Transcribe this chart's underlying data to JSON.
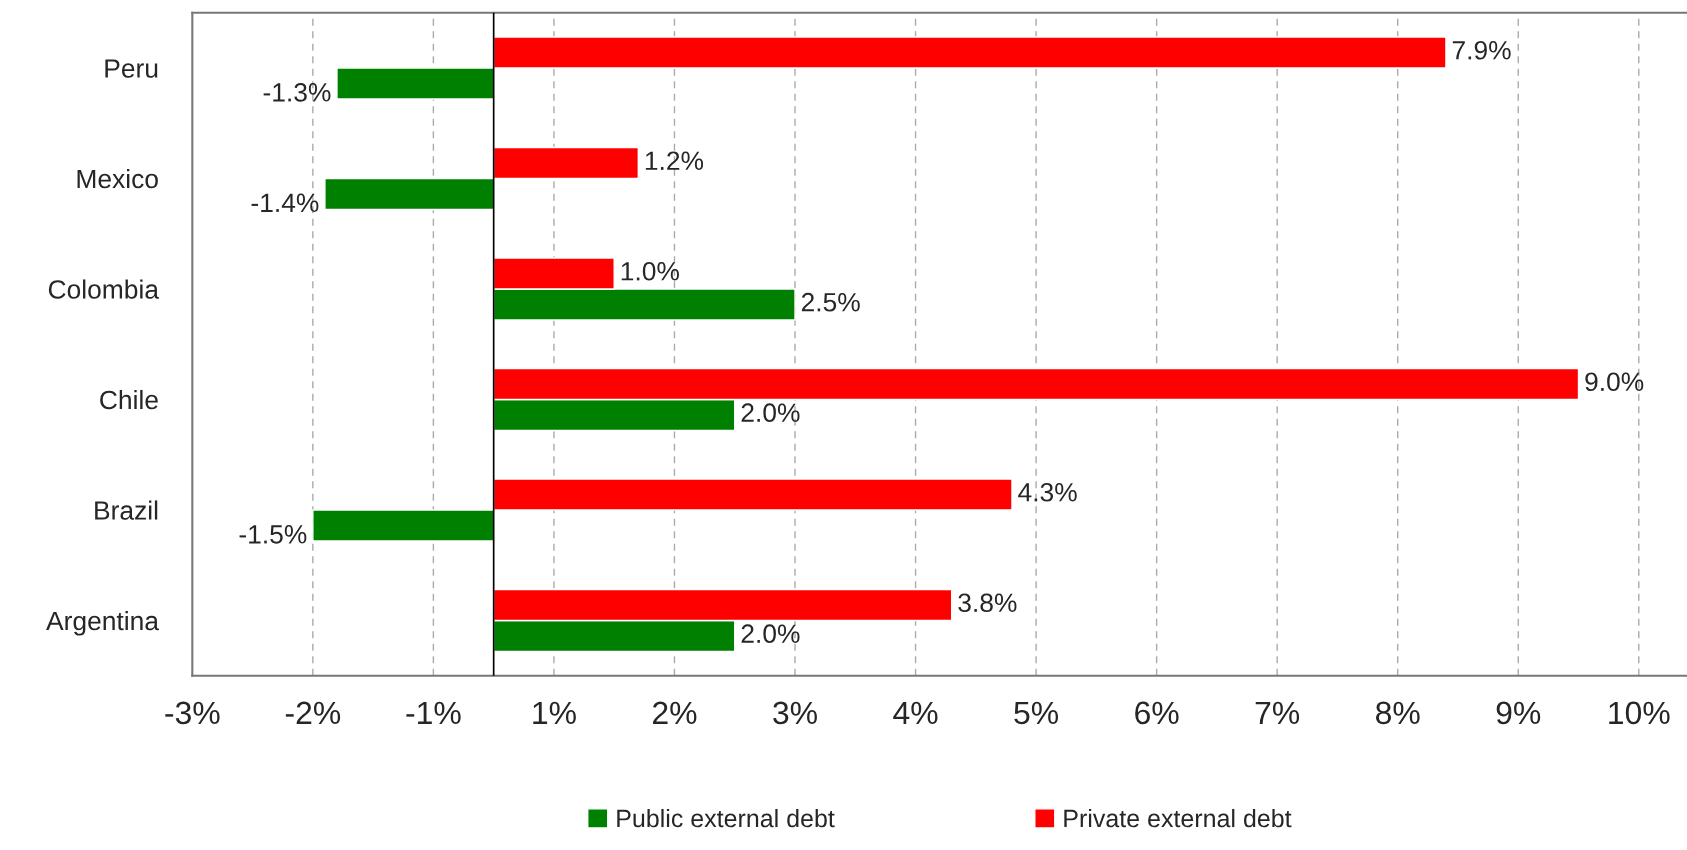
{
  "chart_data": {
    "type": "bar",
    "orientation": "horizontal",
    "categories": [
      "Peru",
      "Mexico",
      "Colombia",
      "Chile",
      "Brazil",
      "Argentina"
    ],
    "series": [
      {
        "name": "Public external debt",
        "color": "#008000",
        "values": [
          -1.3,
          -1.4,
          2.5,
          2.0,
          -1.5,
          2.0
        ],
        "value_labels": [
          "-1.3%",
          "-1.4%",
          "2.5%",
          "2.0%",
          "-1.5%",
          "2.0%"
        ]
      },
      {
        "name": "Private external debt",
        "color": "#ff0000",
        "values": [
          7.9,
          1.2,
          1.0,
          9.0,
          4.3,
          3.8
        ],
        "value_labels": [
          "7.9%",
          "1.2%",
          "1.0%",
          "9.0%",
          "4.3%",
          "3.8%"
        ]
      }
    ],
    "xlim": [
      -2.5,
      9.9
    ],
    "xticks": [
      {
        "value": -2.5,
        "label": "-3%"
      },
      {
        "value": -1.5,
        "label": "-2%"
      },
      {
        "value": -0.5,
        "label": "-1%"
      },
      {
        "value": 0.5,
        "label": "1%"
      },
      {
        "value": 1.5,
        "label": "2%"
      },
      {
        "value": 2.5,
        "label": "3%"
      },
      {
        "value": 3.5,
        "label": "4%"
      },
      {
        "value": 4.5,
        "label": "5%"
      },
      {
        "value": 5.5,
        "label": "6%"
      },
      {
        "value": 6.5,
        "label": "7%"
      },
      {
        "value": 7.5,
        "label": "8%"
      },
      {
        "value": 8.5,
        "label": "9%"
      },
      {
        "value": 9.5,
        "label": "10%"
      }
    ],
    "grid": "x",
    "legend": "bottom"
  }
}
